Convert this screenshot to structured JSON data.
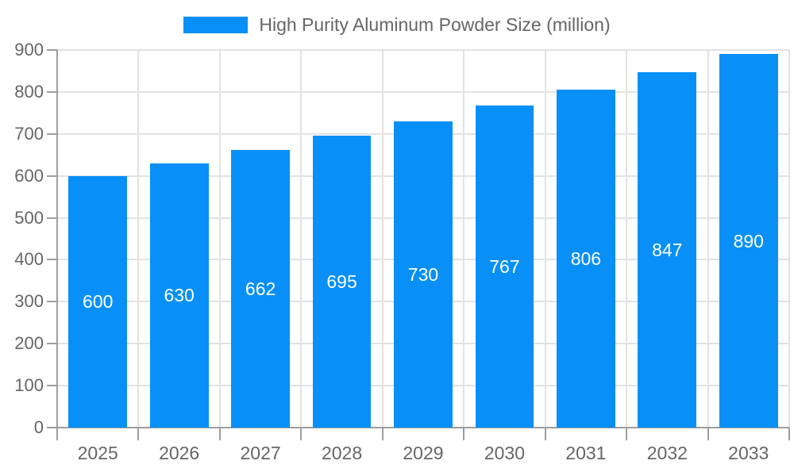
{
  "legend": {
    "label": "High Purity Aluminum Powder Size (million)"
  },
  "chart_data": {
    "type": "bar",
    "title": "High Purity Aluminum Powder Size (million)",
    "series_name": "High Purity Aluminum Powder Size (million)",
    "categories": [
      "2025",
      "2026",
      "2027",
      "2028",
      "2029",
      "2030",
      "2031",
      "2032",
      "2033"
    ],
    "values": [
      600,
      630,
      662,
      695,
      730,
      767,
      806,
      847,
      890
    ],
    "value_labels": [
      "600",
      "630",
      "662",
      "695",
      "730",
      "767",
      "806",
      "847",
      "890"
    ],
    "xlabel": "",
    "ylabel": "",
    "ylim": [
      0,
      900
    ],
    "y_tick_step": 100,
    "y_tick_labels": [
      "0",
      "100",
      "200",
      "300",
      "400",
      "500",
      "600",
      "700",
      "800",
      "900"
    ],
    "grid": true,
    "legend_position": "top-center",
    "colors": {
      "bar": "#0890f8",
      "value_label": "#ffffff",
      "axis": "#9e9e9e",
      "gridline": "#e2e2e2",
      "tick_text": "#666666",
      "background": "#ffffff"
    }
  }
}
